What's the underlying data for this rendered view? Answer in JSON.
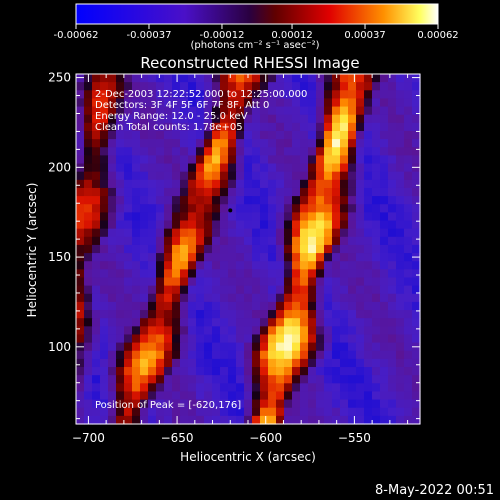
{
  "colorbar": {
    "tick_labels": [
      "-0.00062",
      "-0.00037",
      "-0.00012",
      "0.00012",
      "0.00037",
      "0.00062"
    ],
    "unit_label": "(photons cm⁻² s⁻¹ asec⁻²)",
    "range": [
      -0.00062,
      0.00062
    ],
    "colors": [
      "#0000ff",
      "#5a1fd0",
      "#3a0050",
      "#7a0000",
      "#e00000",
      "#ff8800",
      "#ffff80",
      "#ffffff"
    ]
  },
  "annotations": {
    "time_line": "2-Dec-2003 12:22:52.000 to 12:25:00.000",
    "detectors_line": "Detectors: 3F 4F 5F 6F 7F 8F, Att 0",
    "energy_line": "Energy Range: 12.0 - 25.0 keV",
    "method_line": "Clean    Total counts: 1.78e+05",
    "peak_line": "Position of Peak = [-620,176]"
  },
  "footer": {
    "date": "8-May-2022 00:51"
  },
  "chart_data": {
    "type": "heatmap",
    "title": "Reconstructed RHESSI Image",
    "xlabel": "Heliocentric X (arcsec)",
    "ylabel": "Heliocentric Y (arcsec)",
    "xlim": [
      -707,
      -513
    ],
    "ylim": [
      57,
      252
    ],
    "x_ticks": [
      -700,
      -650,
      -600,
      -550
    ],
    "y_ticks": [
      100,
      150,
      200,
      250
    ],
    "x_tick_labels": [
      "−700",
      "−650",
      "−600",
      "−550"
    ],
    "y_tick_labels": [
      "100",
      "150",
      "200",
      "250"
    ],
    "peak": [
      -620,
      176
    ],
    "bright_stripes": [
      {
        "x_top": -690,
        "x_bottom": -720,
        "y_top": 252,
        "y_bottom": 57,
        "strength": 0.65
      },
      {
        "x_top": -618,
        "x_bottom": -680,
        "y_top": 235,
        "y_bottom": 57,
        "strength": 0.8
      },
      {
        "x_top": -550,
        "x_bottom": -600,
        "y_top": 252,
        "y_bottom": 57,
        "strength": 0.95
      }
    ]
  }
}
